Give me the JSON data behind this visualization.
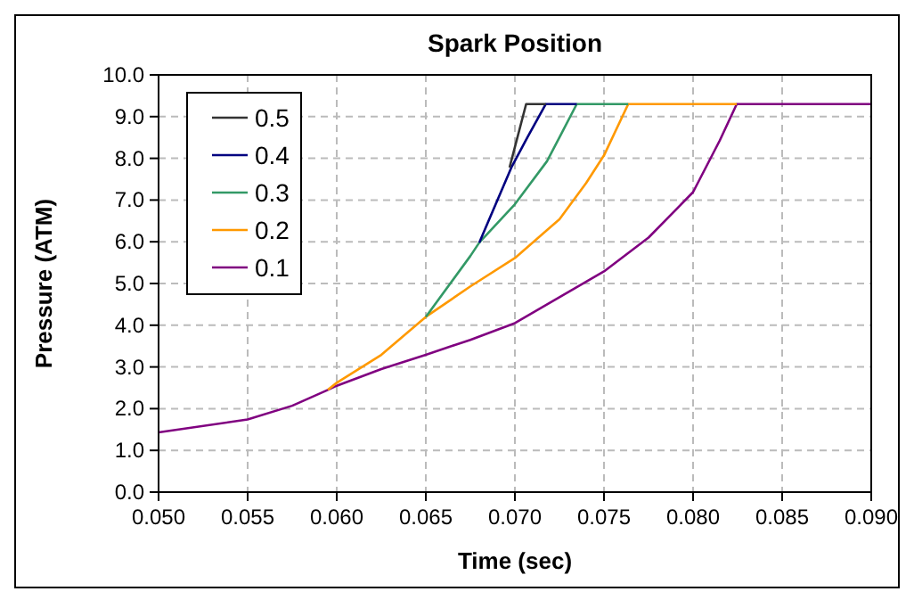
{
  "chart_data": {
    "type": "line",
    "title": "Spark Position",
    "xlabel": "Time (sec)",
    "ylabel": "Pressure (ATM)",
    "xlim": [
      0.05,
      0.09
    ],
    "ylim": [
      0,
      10
    ],
    "xticks": [
      {
        "value": 0.05,
        "label": "0.050"
      },
      {
        "value": 0.055,
        "label": "0.055"
      },
      {
        "value": 0.06,
        "label": "0.060"
      },
      {
        "value": 0.065,
        "label": "0.065"
      },
      {
        "value": 0.07,
        "label": "0.070"
      },
      {
        "value": 0.075,
        "label": "0.075"
      },
      {
        "value": 0.08,
        "label": "0.080"
      },
      {
        "value": 0.085,
        "label": "0.085"
      },
      {
        "value": 0.09,
        "label": "0.090"
      }
    ],
    "yticks": [
      {
        "value": 0,
        "label": "0.0"
      },
      {
        "value": 1,
        "label": "1.0"
      },
      {
        "value": 2,
        "label": "2.0"
      },
      {
        "value": 3,
        "label": "3.0"
      },
      {
        "value": 4,
        "label": "4.0"
      },
      {
        "value": 5,
        "label": "5.0"
      },
      {
        "value": 6,
        "label": "6.0"
      },
      {
        "value": 7,
        "label": "7.0"
      },
      {
        "value": 8,
        "label": "8.0"
      },
      {
        "value": 9,
        "label": "9.0"
      },
      {
        "value": 10,
        "label": "10.0"
      }
    ],
    "grid": true,
    "legend": "top left",
    "marker": "none",
    "line_style": "solid",
    "series": [
      {
        "name": "0.5",
        "color": "#333333",
        "x": [
          0.0697,
          0.07063,
          0.07173
        ],
        "values": [
          7.78,
          9.3,
          9.3
        ]
      },
      {
        "name": "0.4",
        "color": "#000080",
        "x": [
          0.068,
          0.0698,
          0.0707,
          0.07173,
          0.07347
        ],
        "values": [
          5.98,
          7.78,
          8.5,
          9.3,
          9.3
        ]
      },
      {
        "name": "0.3",
        "color": "#339966",
        "x": [
          0.065,
          0.0675,
          0.068,
          0.07,
          0.0718,
          0.0725,
          0.07347,
          0.07636
        ],
        "values": [
          4.2,
          5.66,
          5.98,
          6.9,
          7.93,
          8.5,
          9.3,
          9.3
        ]
      },
      {
        "name": "0.2",
        "color": "#ff9900",
        "x": [
          0.0595,
          0.06,
          0.0625,
          0.065,
          0.0675,
          0.07,
          0.0725,
          0.074,
          0.075,
          0.07636,
          0.08245
        ],
        "values": [
          2.45,
          2.62,
          3.29,
          4.2,
          4.93,
          5.61,
          6.54,
          7.41,
          8.07,
          9.3,
          9.3
        ]
      },
      {
        "name": "0.1",
        "color": "#800080",
        "x": [
          0.05,
          0.055,
          0.0575,
          0.0595,
          0.06,
          0.0625,
          0.065,
          0.0675,
          0.07,
          0.075,
          0.0775,
          0.08,
          0.0815,
          0.08245,
          0.09
        ],
        "values": [
          1.43,
          1.74,
          2.07,
          2.45,
          2.55,
          2.95,
          3.29,
          3.65,
          4.05,
          5.29,
          6.1,
          7.19,
          8.43,
          9.3,
          9.3
        ]
      }
    ]
  }
}
